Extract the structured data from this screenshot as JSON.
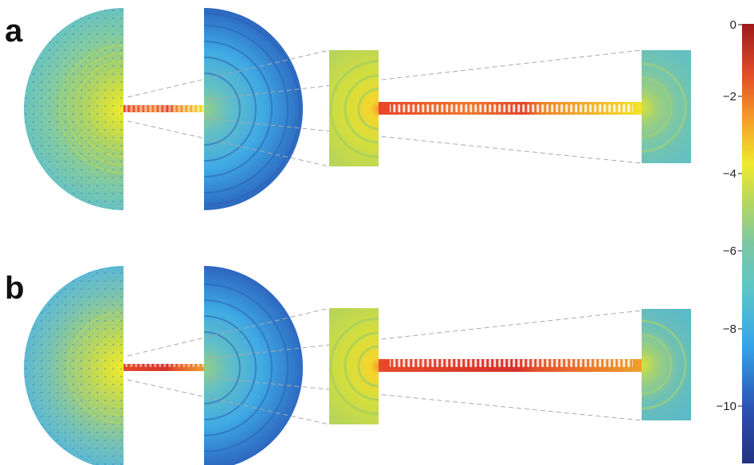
{
  "panels": [
    {
      "label": "a"
    },
    {
      "label": "b"
    }
  ],
  "colorbar": {
    "ticks": [
      "0",
      "−2",
      "−4",
      "−6",
      "−8",
      "−10"
    ],
    "range": [
      -11,
      0
    ],
    "colormap": "jet"
  },
  "colors": {
    "guide_lines": "#a9a9a9",
    "background": "#ffffff"
  }
}
